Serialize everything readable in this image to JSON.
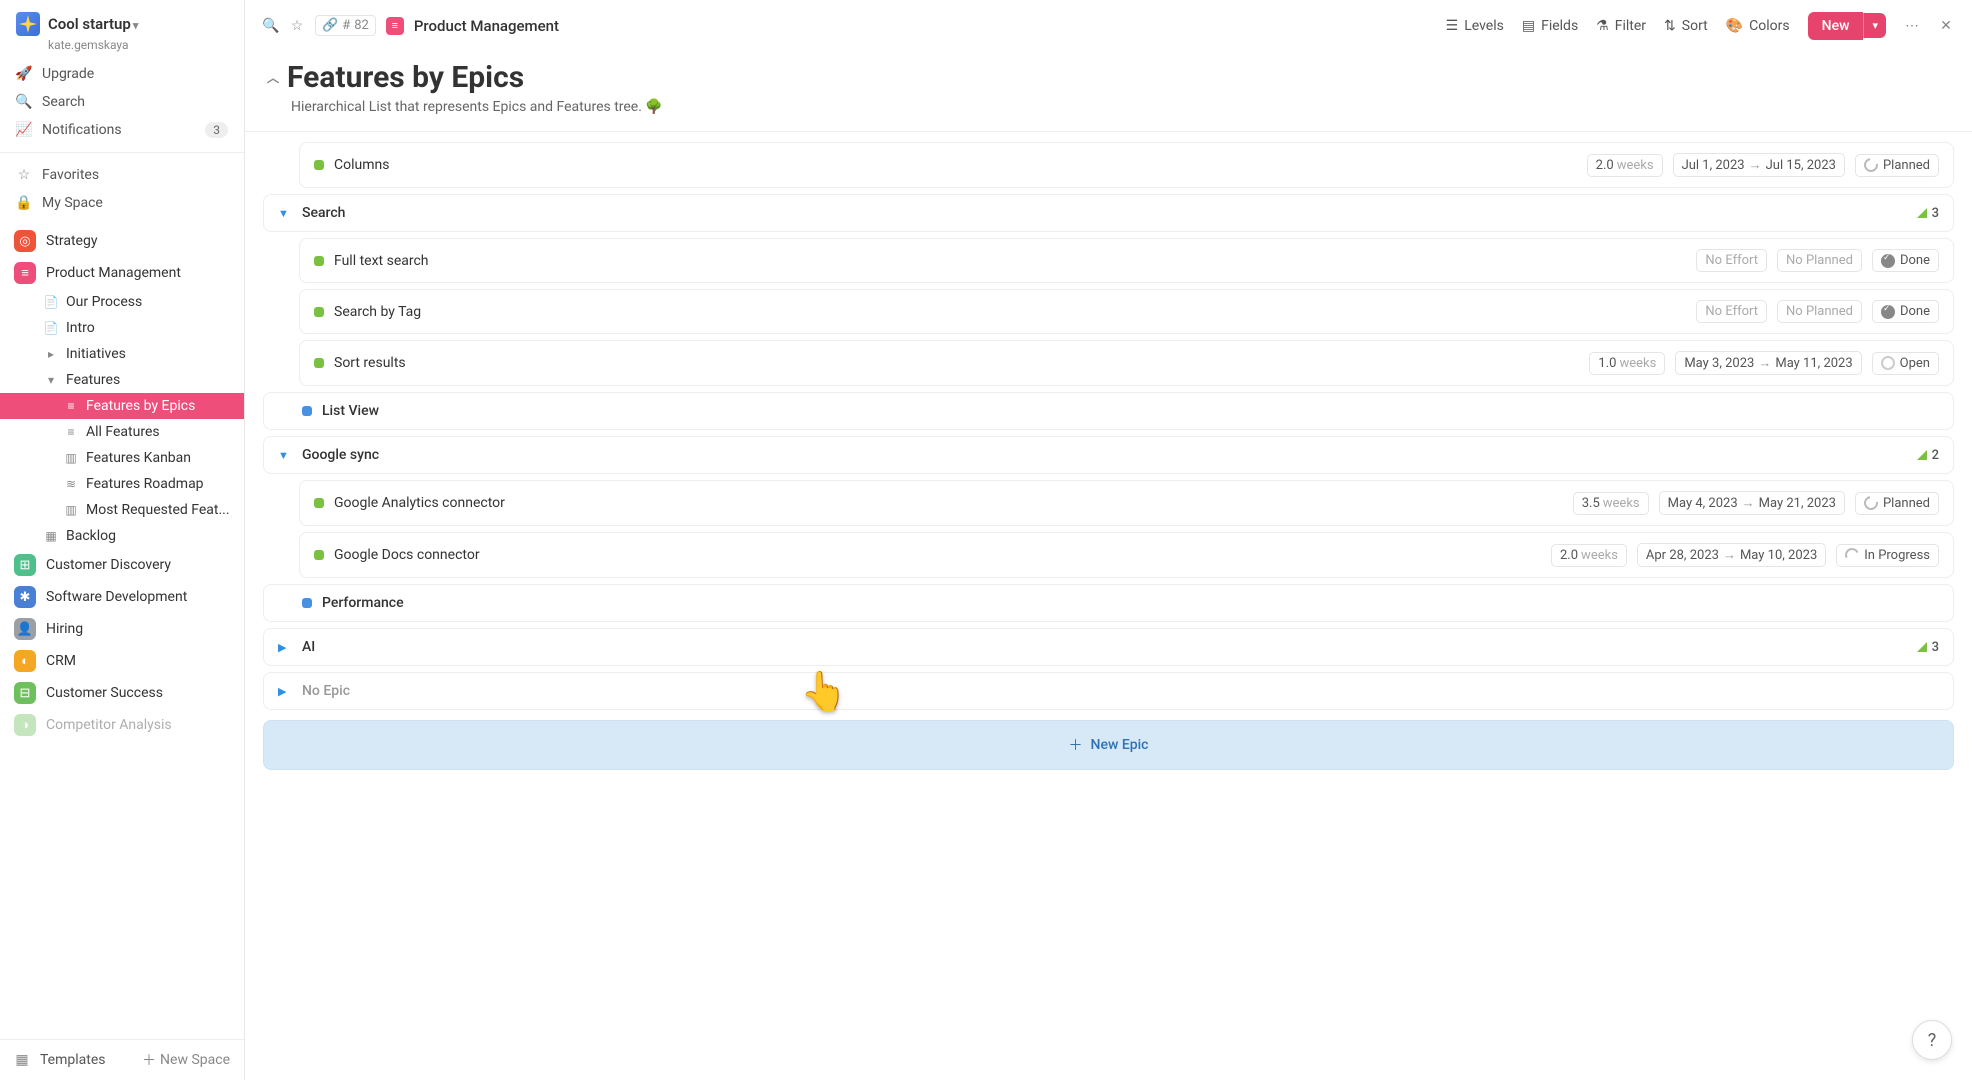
{
  "workspace": {
    "name": "Cool startup",
    "user": "kate.gemskaya"
  },
  "nav": {
    "upgrade": "Upgrade",
    "search": "Search",
    "notifications": "Notifications",
    "notif_count": "3",
    "favorites": "Favorites",
    "myspace": "My Space"
  },
  "spaces": [
    {
      "name": "Strategy",
      "color": "#f0533a",
      "glyph": "◎"
    },
    {
      "name": "Product Management",
      "color": "#ed4e7a",
      "glyph": "≡",
      "expanded": true,
      "children": [
        {
          "label": "Our Process",
          "icon": "doc"
        },
        {
          "label": "Intro",
          "icon": "doc"
        },
        {
          "label": "Initiatives",
          "icon": "caret"
        },
        {
          "label": "Features",
          "icon": "caret-down",
          "expanded": true,
          "children": [
            {
              "label": "Features by Epics",
              "icon": "list",
              "active": true
            },
            {
              "label": "All Features",
              "icon": "list"
            },
            {
              "label": "Features Kanban",
              "icon": "kanban"
            },
            {
              "label": "Features Roadmap",
              "icon": "roadmap"
            },
            {
              "label": "Most Requested Feat...",
              "icon": "kanban"
            }
          ]
        },
        {
          "label": "Backlog",
          "icon": "grid"
        }
      ]
    },
    {
      "name": "Customer Discovery",
      "color": "#4fbf8b",
      "glyph": "⊞"
    },
    {
      "name": "Software Development",
      "color": "#4a7fd6",
      "glyph": "✱"
    },
    {
      "name": "Hiring",
      "color": "#9aa0a6",
      "glyph": "👤"
    },
    {
      "name": "CRM",
      "color": "#f5a623",
      "glyph": "◐"
    },
    {
      "name": "Customer Success",
      "color": "#6ec05f",
      "glyph": "⊟"
    },
    {
      "name": "Competitor Analysis",
      "color": "#6ec05f",
      "glyph": "◑",
      "faded": true
    }
  ],
  "footer": {
    "templates": "Templates",
    "newspace": "New Space"
  },
  "topbar": {
    "id_prefix": "#",
    "id": "82",
    "breadcrumb": "Product Management",
    "levels": "Levels",
    "fields": "Fields",
    "filter": "Filter",
    "sort": "Sort",
    "colors": "Colors",
    "new": "New"
  },
  "page": {
    "title": "Features by Epics",
    "desc": "Hierarchical List that represents Epics and Features tree. 🌳"
  },
  "rows": [
    {
      "type": "child",
      "dot": "green",
      "title": "Columns",
      "effort": "2.0",
      "effort_unit": "weeks",
      "date_from": "Jul 1, 2023",
      "date_to": "Jul 15, 2023",
      "status": "Planned",
      "status_kind": "planned"
    },
    {
      "type": "group",
      "dot": "none",
      "title": "Search",
      "exp": "down",
      "count": "3"
    },
    {
      "type": "child",
      "dot": "green",
      "title": "Full text search",
      "no_effort": "No Effort",
      "no_planned": "No Planned",
      "status": "Done",
      "status_kind": "done"
    },
    {
      "type": "child",
      "dot": "green",
      "title": "Search by Tag",
      "no_effort": "No Effort",
      "no_planned": "No Planned",
      "status": "Done",
      "status_kind": "done"
    },
    {
      "type": "child",
      "dot": "green",
      "title": "Sort results",
      "effort": "1.0",
      "effort_unit": "weeks",
      "date_from": "May 3, 2023",
      "date_to": "May 11, 2023",
      "status": "Open",
      "status_kind": "open"
    },
    {
      "type": "group",
      "dot": "blue",
      "title": "List View",
      "exp": "none"
    },
    {
      "type": "group",
      "dot": "none",
      "title": "Google sync",
      "exp": "down",
      "count": "2"
    },
    {
      "type": "child",
      "dot": "green",
      "title": "Google Analytics connector",
      "effort": "3.5",
      "effort_unit": "weeks",
      "date_from": "May 4, 2023",
      "date_to": "May 21, 2023",
      "status": "Planned",
      "status_kind": "planned"
    },
    {
      "type": "child",
      "dot": "green",
      "title": "Google Docs connector",
      "effort": "2.0",
      "effort_unit": "weeks",
      "date_from": "Apr 28, 2023",
      "date_to": "May 10, 2023",
      "status": "In Progress",
      "status_kind": "prog"
    },
    {
      "type": "group",
      "dot": "blue",
      "title": "Performance",
      "exp": "none"
    },
    {
      "type": "group",
      "dot": "none",
      "title": "AI",
      "exp": "right",
      "count": "3"
    },
    {
      "type": "group",
      "dot": "none",
      "title": "No Epic",
      "exp": "right",
      "muted": true
    }
  ],
  "new_epic": "New Epic",
  "help": "?"
}
